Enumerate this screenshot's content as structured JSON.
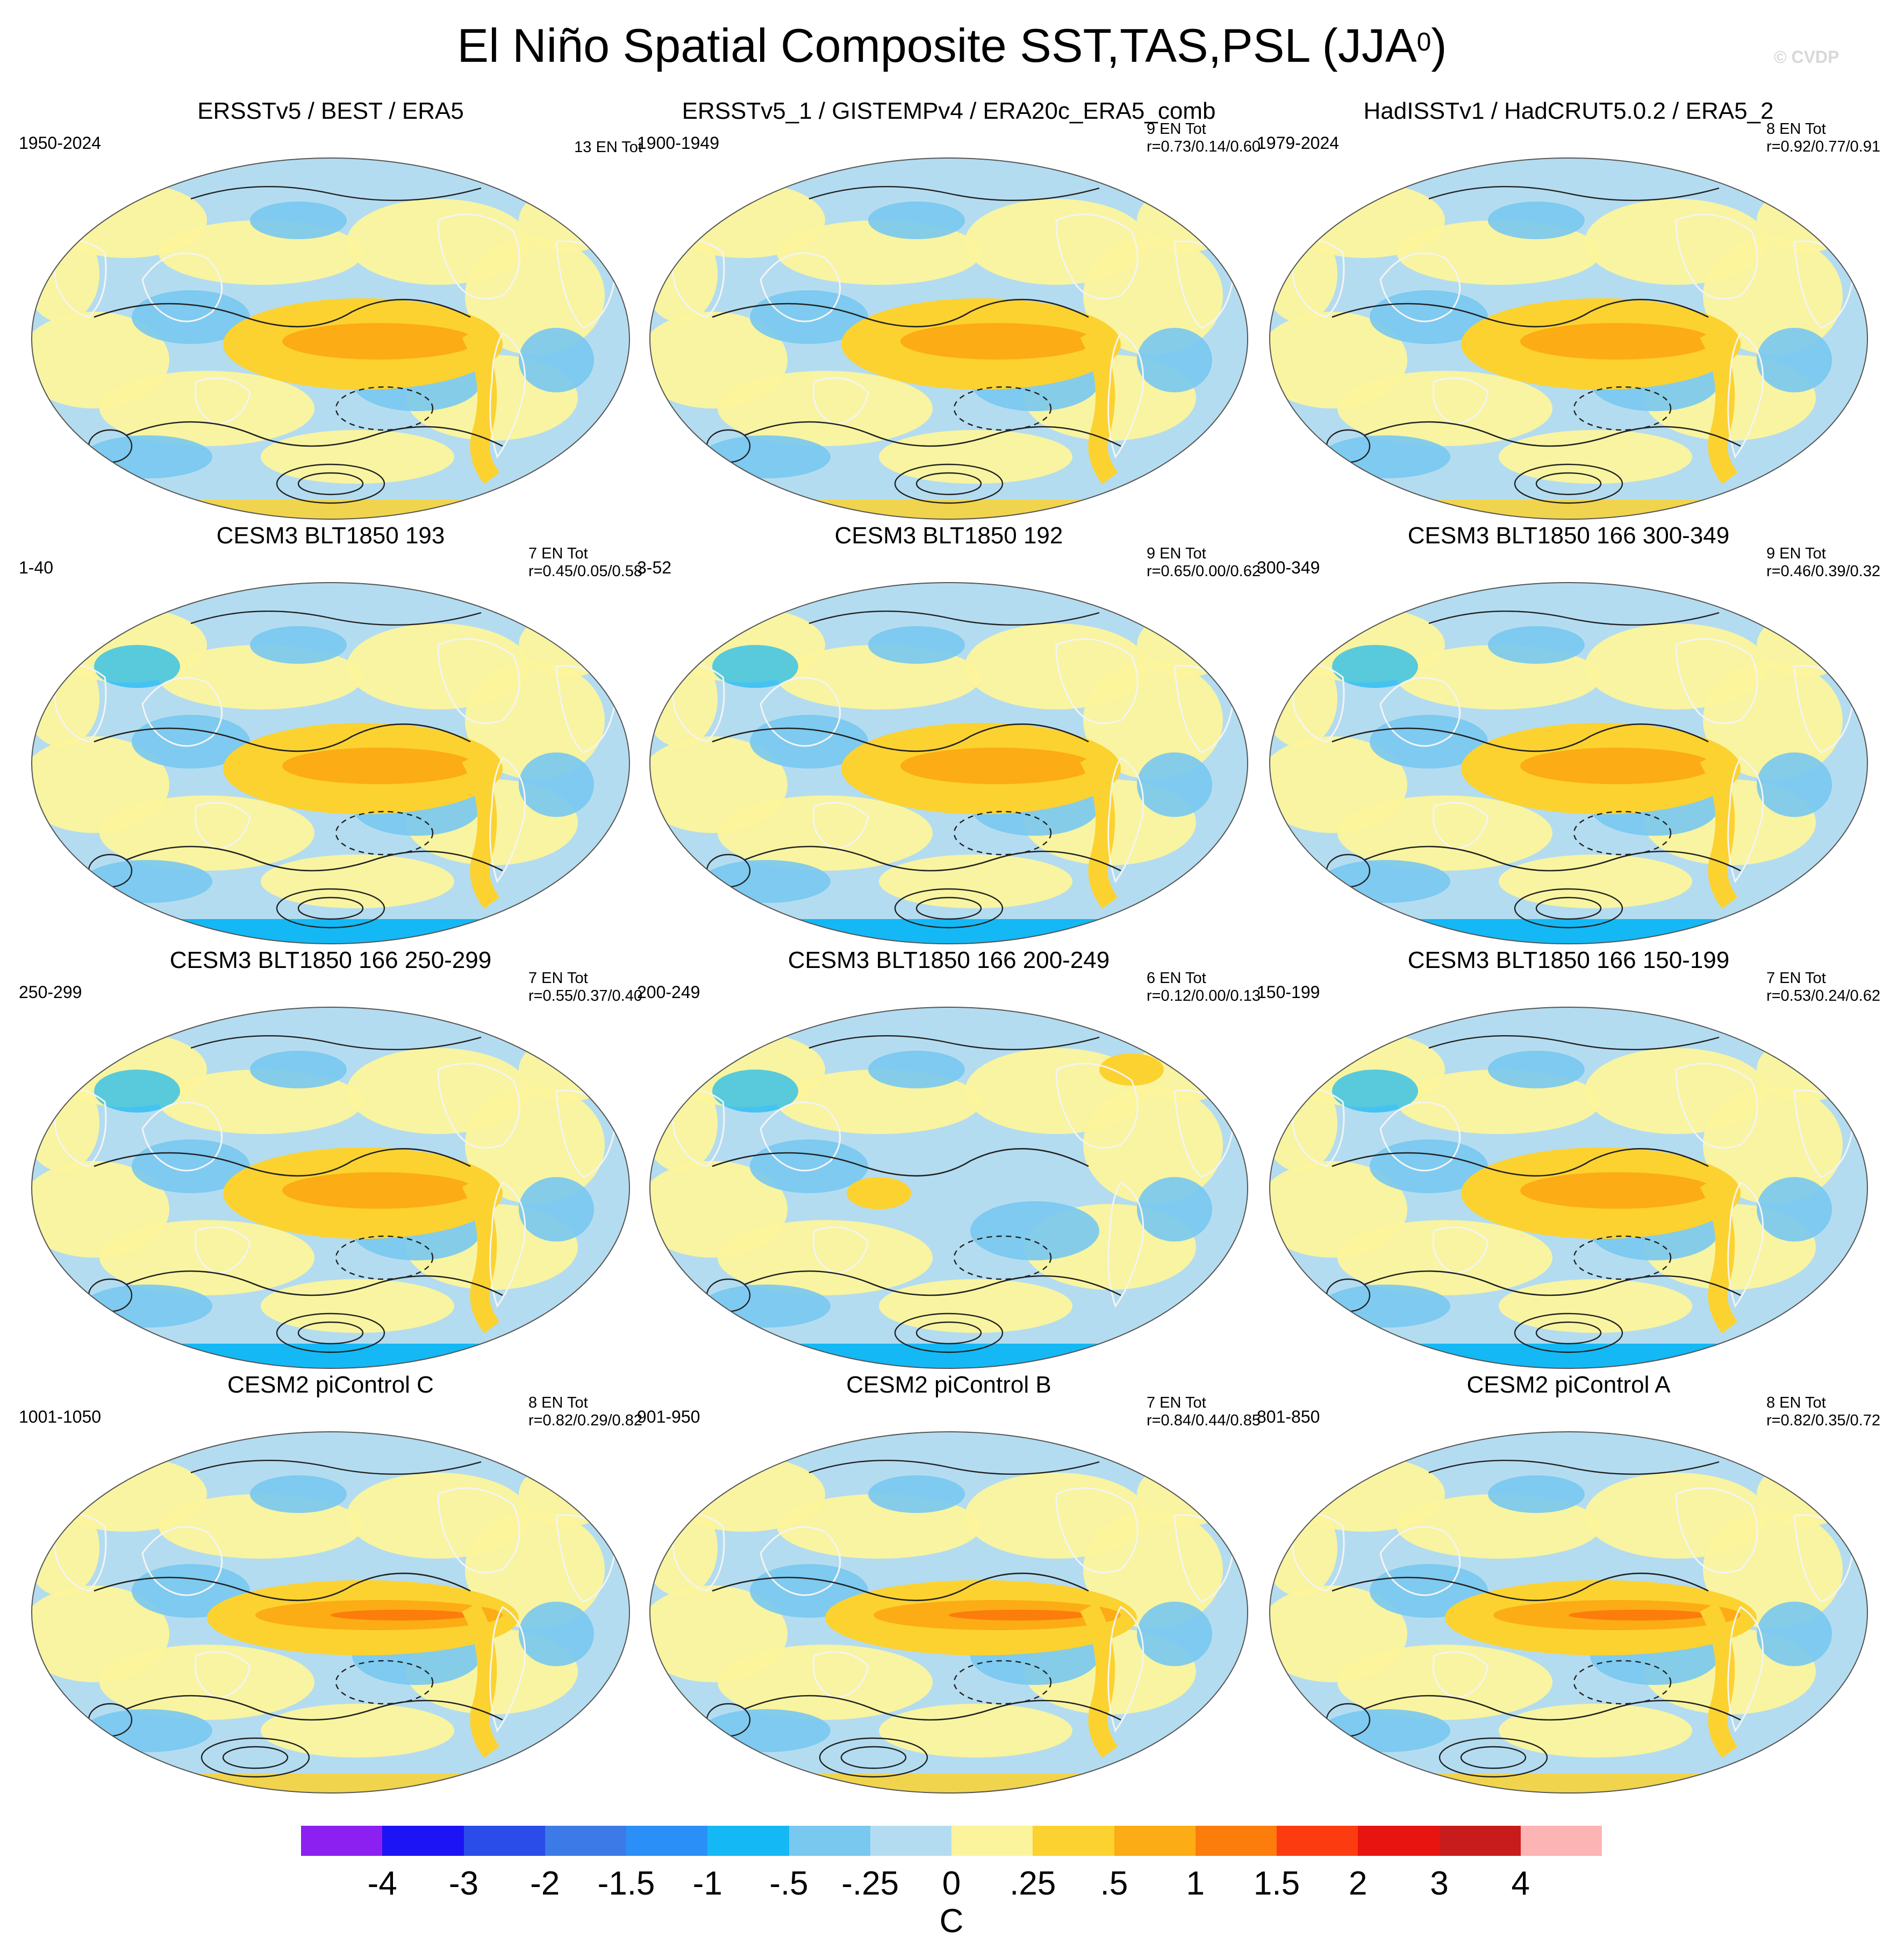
{
  "title": {
    "text": "El Niño Spatial Composite SST,TAS,PSL (JJA",
    "sup": "0",
    "close": ")"
  },
  "credit": "© CVDP",
  "panels": [
    {
      "title": "ERSSTv5 / BEST / ERA5",
      "period": "1950-2024",
      "entot": "13 EN Tot",
      "r": "",
      "style": "obs"
    },
    {
      "title": "ERSSTv5_1 / GISTEMPv4 / ERA20c_ERA5_comb",
      "period": "1900-1949",
      "entot": "9 EN Tot",
      "r": "r=0.73/0.14/0.60",
      "style": "obs"
    },
    {
      "title": "HadISSTv1 / HadCRUT5.0.2 / ERA5_2",
      "period": "1979-2024",
      "entot": "8 EN Tot",
      "r": "r=0.92/0.77/0.91",
      "style": "obs"
    },
    {
      "title": "CESM3 BLT1850 193",
      "period": "1-40",
      "entot": "7 EN Tot",
      "r": "r=0.45/0.05/0.58",
      "style": "model"
    },
    {
      "title": "CESM3 BLT1850 192",
      "period": "3-52",
      "entot": "9 EN Tot",
      "r": "r=0.65/0.00/0.62",
      "style": "model"
    },
    {
      "title": "CESM3 BLT1850 166 300-349",
      "period": "300-349",
      "entot": "9 EN Tot",
      "r": "r=0.46/0.39/0.32",
      "style": "model"
    },
    {
      "title": "CESM3 BLT1850 166 250-299",
      "period": "250-299",
      "entot": "7 EN Tot",
      "r": "r=0.55/0.37/0.40",
      "style": "model"
    },
    {
      "title": "CESM3 BLT1850 166 200-249",
      "period": "200-249",
      "entot": "6 EN Tot",
      "r": "r=0.12/0.00/0.13",
      "style": "weak"
    },
    {
      "title": "CESM3 BLT1850 166 150-199",
      "period": "150-199",
      "entot": "7 EN Tot",
      "r": "r=0.53/0.24/0.62",
      "style": "model"
    },
    {
      "title": "CESM2 piControl C",
      "period": "1001-1050",
      "entot": "8 EN Tot",
      "r": "r=0.82/0.29/0.82",
      "style": "strong"
    },
    {
      "title": "CESM2 piControl B",
      "period": "901-950",
      "entot": "7 EN Tot",
      "r": "r=0.84/0.44/0.85",
      "style": "strong"
    },
    {
      "title": "CESM2 piControl A",
      "period": "801-850",
      "entot": "8 EN Tot",
      "r": "r=0.82/0.35/0.72",
      "style": "strong"
    }
  ],
  "colorbar": {
    "unit": "C",
    "labels": [
      "-4",
      "-3",
      "-2",
      "-1.5",
      "-1",
      "-.5",
      "-.25",
      "0",
      ".25",
      ".5",
      "1",
      "1.5",
      "2",
      "3",
      "4"
    ],
    "colors": [
      "#8b20f0",
      "#1c14f4",
      "#2a4ce8",
      "#3c7ae8",
      "#2a90f8",
      "#14b8f4",
      "#78c8f0",
      "#b4dcf0",
      "#fcf49c",
      "#fcd230",
      "#fcac14",
      "#fc7c0c",
      "#fc3c10",
      "#e81410",
      "#c81c1c",
      "#fcb4b4"
    ]
  }
}
